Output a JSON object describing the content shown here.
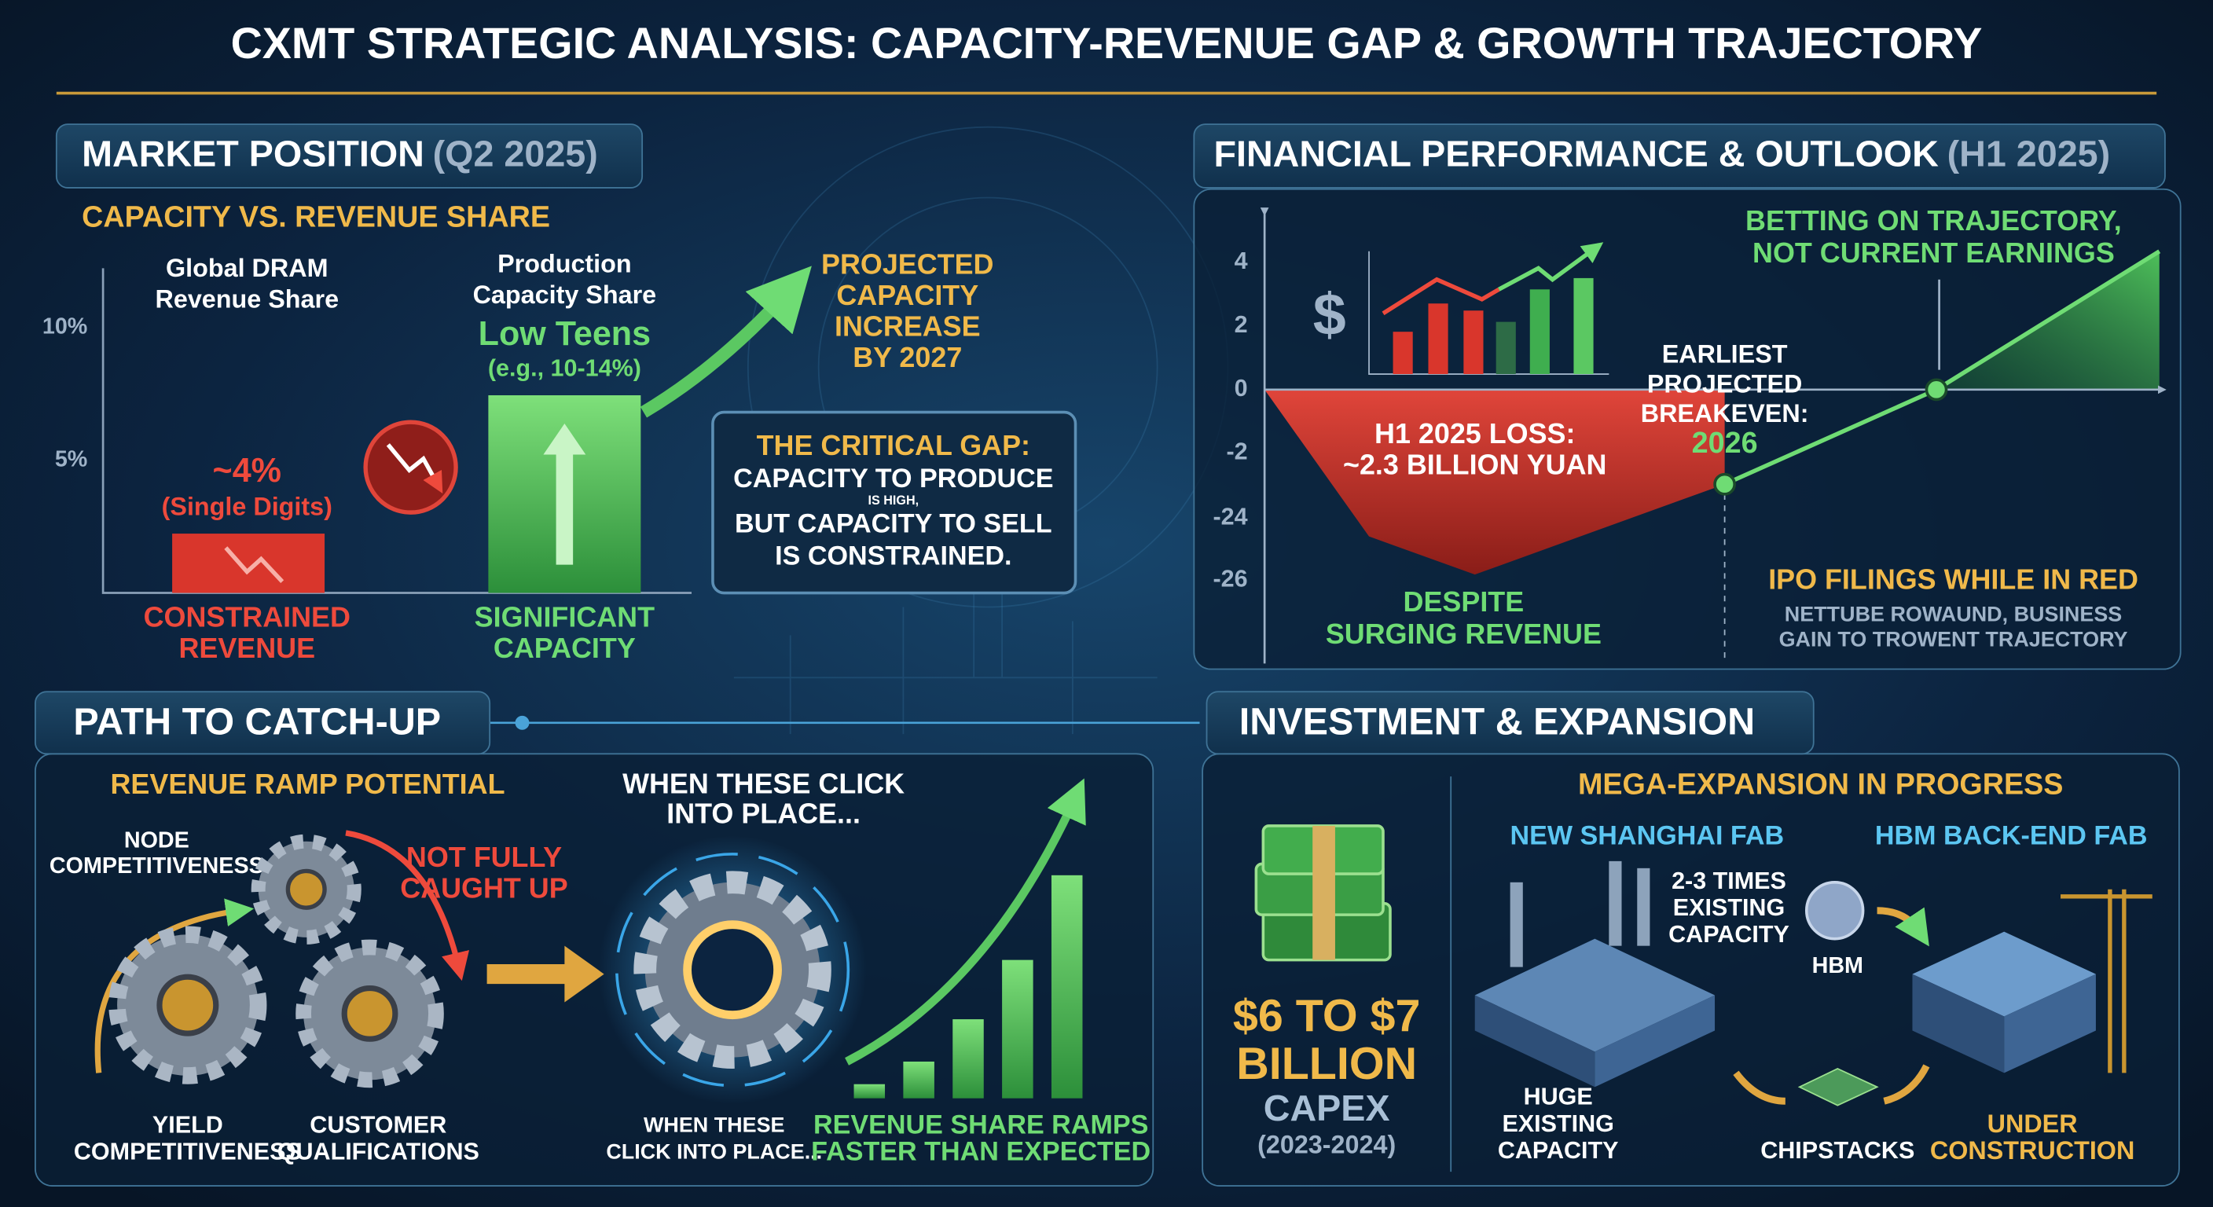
{
  "title": "CXMT STRATEGIC ANALYSIS: CAPACITY-REVENUE GAP & GROWTH TRAJECTORY",
  "market_position": {
    "heading": "MARKET POSITION",
    "period": "(Q2 2025)",
    "subheading": "CAPACITY VS. REVENUE SHARE",
    "axis_labels": [
      "10%",
      "5%"
    ],
    "revenue_label": [
      "Global DRAM",
      "Revenue Share"
    ],
    "revenue_value": "~4%",
    "revenue_note": "(Single Digits)",
    "revenue_caption": [
      "CONSTRAINED",
      "REVENUE"
    ],
    "capacity_label": [
      "Production",
      "Capacity Share"
    ],
    "capacity_value": "Low Teens",
    "capacity_note": "(e.g., 10-14%)",
    "capacity_caption": [
      "SIGNIFICANT",
      "CAPACITY"
    ],
    "projection": [
      "PROJECTED",
      "CAPACITY",
      "INCREASE",
      "BY 2027"
    ],
    "gap_title": "THE CRITICAL GAP:",
    "gap_line1": "CAPACITY TO PRODUCE",
    "gap_small": "IS HIGH,",
    "gap_line2": [
      "BUT CAPACITY TO SELL",
      "IS CONSTRAINED."
    ]
  },
  "financial": {
    "heading": "FINANCIAL PERFORMANCE & OUTLOOK",
    "period": "(H1 2025)",
    "axis_labels": [
      "4",
      "2",
      "0",
      "-2",
      "-24",
      "-26"
    ],
    "currency_icon": "$",
    "loss": [
      "H1 2025 LOSS:",
      "~2.3 BILLION YUAN"
    ],
    "despite": [
      "DESPITE",
      "SURGING REVENUE"
    ],
    "breakeven": [
      "EARLIEST",
      "PROJECTED",
      "BREAKEVEN:"
    ],
    "breakeven_year": "2026",
    "betting": [
      "BETTING ON TRAJECTORY,",
      "NOT CURRENT EARNINGS"
    ],
    "ipo": "IPO FILINGS WHILE IN RED",
    "ipo_note": [
      "NETTUBE ROWAUND, BUSINESS",
      "GAIN TO TROWENT TRAJECTORY"
    ]
  },
  "path": {
    "heading": "PATH TO CATCH-UP",
    "subheading": "REVENUE RAMP POTENTIAL",
    "node": [
      "NODE",
      "COMPETITIVENESS"
    ],
    "not_caught_up": [
      "NOT FULLY",
      "CAUGHT UP"
    ],
    "yield": [
      "YIELD",
      "COMPETITIVENESS"
    ],
    "customer": [
      "CUSTOMER",
      "QUALIFICATIONS"
    ],
    "click_title": [
      "WHEN THESE CLICK",
      "INTO PLACE..."
    ],
    "click_caption": [
      "WHEN THESE",
      "CLICK INTO PLACE..."
    ],
    "ramp": [
      "REVENUE SHARE RAMPS",
      "FASTER THAN EXPECTED"
    ]
  },
  "investment": {
    "heading": "INVESTMENT & EXPANSION",
    "subheading": "MEGA-EXPANSION IN PROGRESS",
    "capex_amount": [
      "$6 TO $7",
      "BILLION"
    ],
    "capex_label": "CAPEX",
    "capex_period": "(2023-2024)",
    "shanghai": "NEW SHANGHAI FAB",
    "times": [
      "2-3 TIMES",
      "EXISTING",
      "CAPACITY"
    ],
    "huge": [
      "HUGE",
      "EXISTING",
      "CAPACITY"
    ],
    "hbm_fab": "HBM BACK-END FAB",
    "hbm": "HBM",
    "chipstacks": "CHIPSTACKS",
    "under_construction": [
      "UNDER",
      "CONSTRUCTION"
    ]
  }
}
